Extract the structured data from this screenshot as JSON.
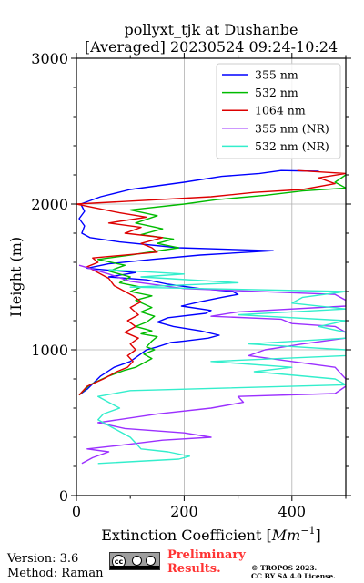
{
  "chart_data": {
    "type": "line",
    "title": "pollyxt_tjk at Dushanbe",
    "subtitle": "[Averaged] 20230524 09:24-10:24",
    "xlabel": "Extinction Coefficient [$Mm^{-1}$]",
    "xlabel_base": "Extinction Coefficient [",
    "xlabel_unit": "Mm",
    "xlabel_exp": "−1",
    "xlabel_end": "]",
    "ylabel": "Height (m)",
    "xlim": [
      0,
      500
    ],
    "ylim": [
      0,
      3000
    ],
    "xticks": [
      0,
      200,
      400
    ],
    "yticks": [
      0,
      1000,
      2000,
      3000
    ],
    "grid": true,
    "legend_position": "top-right",
    "series": [
      {
        "name": "355 nm",
        "color": "#0000ff",
        "points": [
          [
            5,
            690
          ],
          [
            20,
            730
          ],
          [
            45,
            820
          ],
          [
            70,
            880
          ],
          [
            100,
            920
          ],
          [
            115,
            960
          ],
          [
            130,
            1000
          ],
          [
            150,
            1020
          ],
          [
            175,
            1050
          ],
          [
            200,
            1060
          ],
          [
            245,
            1080
          ],
          [
            265,
            1100
          ],
          [
            230,
            1130
          ],
          [
            180,
            1160
          ],
          [
            150,
            1190
          ],
          [
            170,
            1220
          ],
          [
            240,
            1250
          ],
          [
            250,
            1270
          ],
          [
            195,
            1300
          ],
          [
            230,
            1330
          ],
          [
            270,
            1360
          ],
          [
            300,
            1380
          ],
          [
            290,
            1400
          ],
          [
            230,
            1420
          ],
          [
            170,
            1450
          ],
          [
            130,
            1480
          ],
          [
            60,
            1500
          ],
          [
            110,
            1530
          ],
          [
            20,
            1560
          ],
          [
            60,
            1590
          ],
          [
            140,
            1620
          ],
          [
            230,
            1650
          ],
          [
            320,
            1670
          ],
          [
            365,
            1680
          ],
          [
            190,
            1700
          ],
          [
            80,
            1740
          ],
          [
            25,
            1770
          ],
          [
            10,
            1800
          ],
          [
            15,
            1850
          ],
          [
            5,
            1900
          ],
          [
            15,
            1950
          ],
          [
            8,
            2000
          ],
          [
            45,
            2050
          ],
          [
            100,
            2100
          ],
          [
            200,
            2150
          ],
          [
            270,
            2190
          ],
          [
            340,
            2210
          ],
          [
            380,
            2230
          ],
          [
            450,
            2225
          ]
        ]
      },
      {
        "name": "532 nm",
        "color": "#00bb00",
        "points": [
          [
            5,
            690
          ],
          [
            25,
            760
          ],
          [
            60,
            820
          ],
          [
            90,
            860
          ],
          [
            110,
            880
          ],
          [
            120,
            900
          ],
          [
            140,
            940
          ],
          [
            125,
            970
          ],
          [
            145,
            1000
          ],
          [
            130,
            1020
          ],
          [
            140,
            1060
          ],
          [
            150,
            1090
          ],
          [
            120,
            1110
          ],
          [
            140,
            1130
          ],
          [
            110,
            1160
          ],
          [
            130,
            1190
          ],
          [
            145,
            1230
          ],
          [
            120,
            1260
          ],
          [
            140,
            1290
          ],
          [
            110,
            1340
          ],
          [
            140,
            1370
          ],
          [
            100,
            1400
          ],
          [
            120,
            1430
          ],
          [
            80,
            1460
          ],
          [
            100,
            1500
          ],
          [
            60,
            1540
          ],
          [
            90,
            1580
          ],
          [
            40,
            1620
          ],
          [
            100,
            1650
          ],
          [
            190,
            1700
          ],
          [
            150,
            1730
          ],
          [
            180,
            1760
          ],
          [
            120,
            1790
          ],
          [
            160,
            1830
          ],
          [
            110,
            1870
          ],
          [
            150,
            1920
          ],
          [
            100,
            1960
          ],
          [
            200,
            2000
          ],
          [
            260,
            2030
          ],
          [
            350,
            2060
          ],
          [
            420,
            2090
          ],
          [
            500,
            2110
          ],
          [
            480,
            2150
          ],
          [
            500,
            2200
          ]
        ]
      },
      {
        "name": "1064 nm",
        "color": "#dd0000",
        "points": [
          [
            5,
            690
          ],
          [
            20,
            750
          ],
          [
            50,
            800
          ],
          [
            75,
            850
          ],
          [
            95,
            880
          ],
          [
            105,
            920
          ],
          [
            95,
            960
          ],
          [
            110,
            1000
          ],
          [
            100,
            1040
          ],
          [
            115,
            1080
          ],
          [
            90,
            1120
          ],
          [
            110,
            1160
          ],
          [
            95,
            1200
          ],
          [
            115,
            1240
          ],
          [
            100,
            1290
          ],
          [
            120,
            1330
          ],
          [
            105,
            1370
          ],
          [
            90,
            1400
          ],
          [
            70,
            1440
          ],
          [
            60,
            1490
          ],
          [
            40,
            1530
          ],
          [
            20,
            1570
          ],
          [
            40,
            1600
          ],
          [
            30,
            1630
          ],
          [
            150,
            1670
          ],
          [
            140,
            1700
          ],
          [
            120,
            1730
          ],
          [
            160,
            1770
          ],
          [
            90,
            1800
          ],
          [
            120,
            1840
          ],
          [
            60,
            1870
          ],
          [
            130,
            1910
          ],
          [
            80,
            1940
          ],
          [
            40,
            1970
          ],
          [
            0,
            2000
          ],
          [
            100,
            2020
          ],
          [
            250,
            2050
          ],
          [
            330,
            2080
          ],
          [
            420,
            2100
          ],
          [
            480,
            2140
          ],
          [
            450,
            2180
          ],
          [
            500,
            2210
          ],
          [
            410,
            2230
          ]
        ]
      },
      {
        "name": "355 nm (NR)",
        "color": "#9b30ff",
        "points": [
          [
            10,
            220
          ],
          [
            30,
            260
          ],
          [
            60,
            300
          ],
          [
            20,
            320
          ],
          [
            70,
            340
          ],
          [
            160,
            380
          ],
          [
            250,
            400
          ],
          [
            200,
            430
          ],
          [
            90,
            460
          ],
          [
            40,
            500
          ],
          [
            150,
            560
          ],
          [
            250,
            600
          ],
          [
            310,
            640
          ],
          [
            300,
            680
          ],
          [
            480,
            700
          ],
          [
            500,
            750
          ],
          [
            500,
            800
          ],
          [
            480,
            880
          ],
          [
            400,
            920
          ],
          [
            320,
            960
          ],
          [
            350,
            1000
          ],
          [
            420,
            1040
          ],
          [
            500,
            1080
          ],
          [
            500,
            1120
          ],
          [
            480,
            1160
          ],
          [
            400,
            1180
          ],
          [
            380,
            1210
          ],
          [
            250,
            1230
          ],
          [
            300,
            1260
          ],
          [
            500,
            1300
          ],
          [
            500,
            1340
          ],
          [
            480,
            1380
          ],
          [
            200,
            1420
          ],
          [
            100,
            1470
          ],
          [
            60,
            1520
          ],
          [
            5,
            1580
          ]
        ]
      },
      {
        "name": "532 nm (NR)",
        "color": "#33eecc",
        "points": [
          [
            40,
            220
          ],
          [
            190,
            250
          ],
          [
            210,
            270
          ],
          [
            170,
            300
          ],
          [
            120,
            320
          ],
          [
            110,
            360
          ],
          [
            100,
            400
          ],
          [
            80,
            440
          ],
          [
            60,
            480
          ],
          [
            40,
            520
          ],
          [
            50,
            560
          ],
          [
            80,
            600
          ],
          [
            60,
            640
          ],
          [
            40,
            680
          ],
          [
            100,
            720
          ],
          [
            500,
            760
          ],
          [
            480,
            800
          ],
          [
            330,
            850
          ],
          [
            400,
            880
          ],
          [
            250,
            920
          ],
          [
            500,
            960
          ],
          [
            500,
            1000
          ],
          [
            320,
            1040
          ],
          [
            500,
            1080
          ],
          [
            500,
            1120
          ],
          [
            450,
            1160
          ],
          [
            500,
            1200
          ],
          [
            300,
            1240
          ],
          [
            500,
            1280
          ],
          [
            400,
            1320
          ],
          [
            420,
            1360
          ],
          [
            500,
            1400
          ],
          [
            100,
            1430
          ],
          [
            300,
            1460
          ],
          [
            120,
            1500
          ],
          [
            200,
            1520
          ],
          [
            60,
            1550
          ]
        ]
      }
    ]
  },
  "footer": {
    "version": "Version: 3.6",
    "method": "Method: Raman",
    "preliminary_line1": "Preliminary",
    "preliminary_line2": "Results.",
    "license_line1": "© TROPOS 2023.",
    "license_line2": "CC BY SA 4.0 License.",
    "cc_text": "cc"
  }
}
